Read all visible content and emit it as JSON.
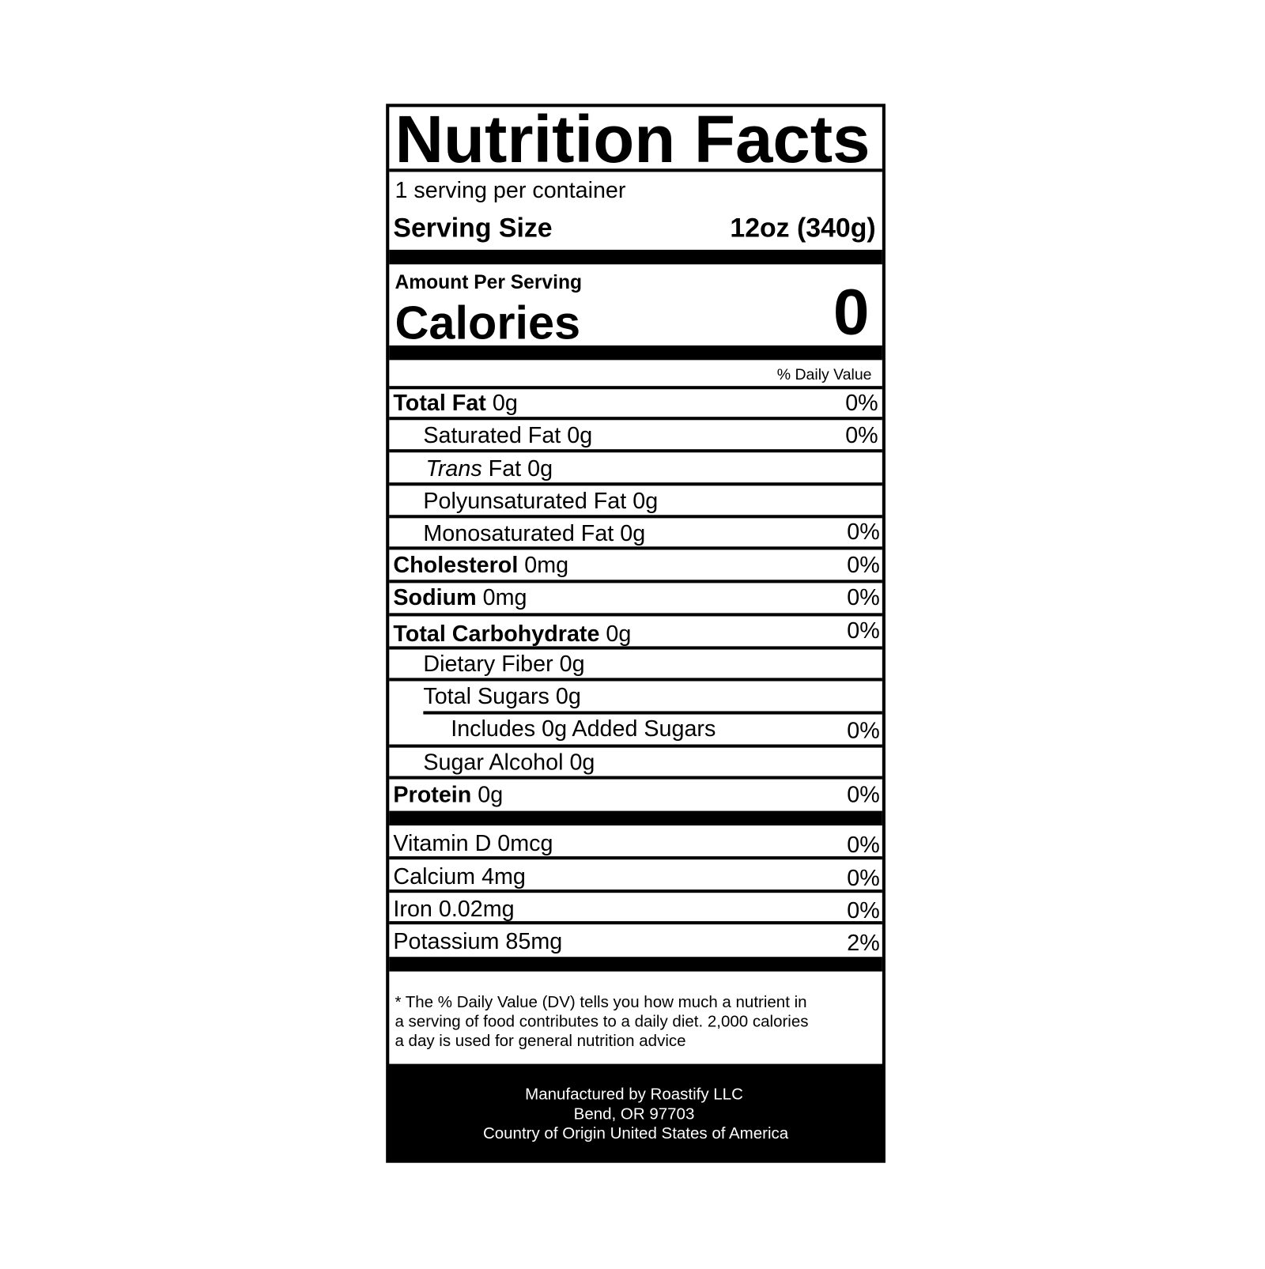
{
  "title": "Nutrition Facts",
  "servings": "1 serving per container",
  "serving_size": {
    "label": "Serving Size",
    "value": "12oz (340g)"
  },
  "calories": {
    "heading": "Amount Per Serving",
    "label": "Calories",
    "value": "0"
  },
  "daily_value_header": "% Daily Value",
  "nutrients": [
    {
      "name": "Total Fat",
      "amount": "0g",
      "dv": "0%"
    },
    {
      "name": "Saturated Fat",
      "amount": "0g",
      "dv": "0%"
    },
    {
      "italic": "Trans",
      "name": "Fat",
      "amount": "0g"
    },
    {
      "name": "Polyunsaturated Fat",
      "amount": "0g"
    },
    {
      "name": "Monosaturated Fat",
      "amount": "0g",
      "dv": "0%"
    },
    {
      "name": "Cholesterol",
      "amount": "0mg",
      "dv": "0%"
    },
    {
      "name": "Sodium",
      "amount": "0mg",
      "dv": "0%"
    },
    {
      "name": "Total Carbohydrate",
      "amount": "0g",
      "dv": "0%"
    },
    {
      "name": "Dietary Fiber",
      "amount": "0g"
    },
    {
      "name": "Total Sugars",
      "amount": "0g"
    },
    {
      "name": "Includes 0g Added Sugars",
      "dv": "0%"
    },
    {
      "name": "Sugar Alcohol",
      "amount": "0g"
    },
    {
      "name": "Protein",
      "amount": "0g",
      "dv": "0%"
    }
  ],
  "vitamins": [
    {
      "name": "Vitamin D",
      "amount": "0mcg",
      "dv": "0%"
    },
    {
      "name": "Calcium",
      "amount": "4mg",
      "dv": "0%"
    },
    {
      "name": "Iron",
      "amount": "0.02mg",
      "dv": "0%"
    },
    {
      "name": "Potassium",
      "amount": "85mg",
      "dv": "2%"
    }
  ],
  "footnote": [
    "* The % Daily Value (DV) tells you how much a nutrient in",
    "a serving of food contributes to a daily diet. 2,000 calories",
    "a day is used for general nutrition advice"
  ],
  "manufacturer": [
    "Manufactured by Roastify LLC",
    "Bend, OR 97703",
    "Country of Origin United States of America"
  ]
}
